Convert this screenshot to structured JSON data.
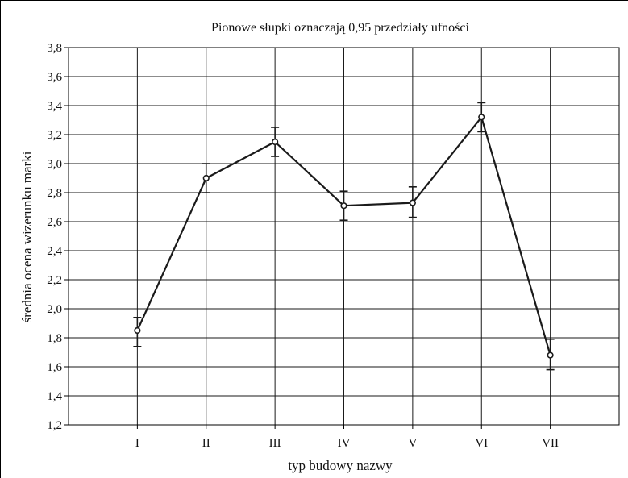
{
  "chart_data": {
    "type": "line",
    "title": "Pionowe słupki oznaczają 0,95 przedziały ufności",
    "xlabel": "typ budowy nazwy",
    "ylabel": "średnia ocena wizerunku marki",
    "categories": [
      "I",
      "II",
      "III",
      "IV",
      "V",
      "VI",
      "VII"
    ],
    "series": [
      {
        "values": [
          1.85,
          2.9,
          3.15,
          2.71,
          2.73,
          3.32,
          1.68
        ],
        "ci_lower": [
          1.74,
          2.8,
          3.05,
          2.61,
          2.63,
          3.22,
          1.58
        ],
        "ci_upper": [
          1.94,
          3.0,
          3.25,
          2.81,
          2.84,
          3.42,
          1.79
        ]
      }
    ],
    "ylim": [
      1.2,
      3.8
    ],
    "yticks": [
      1.2,
      1.4,
      1.6,
      1.8,
      2.0,
      2.2,
      2.4,
      2.6,
      2.8,
      3.0,
      3.2,
      3.4,
      3.6,
      3.8
    ],
    "ytick_labels": [
      "1,2",
      "1,4",
      "1,6",
      "1,8",
      "2,0",
      "2,2",
      "2,4",
      "2,6",
      "2,8",
      "3,0",
      "3,2",
      "3,4",
      "3,6",
      "3,8"
    ],
    "grid": true,
    "line_color": "#1a1a1a",
    "grid_color": "#1a1a1a"
  }
}
